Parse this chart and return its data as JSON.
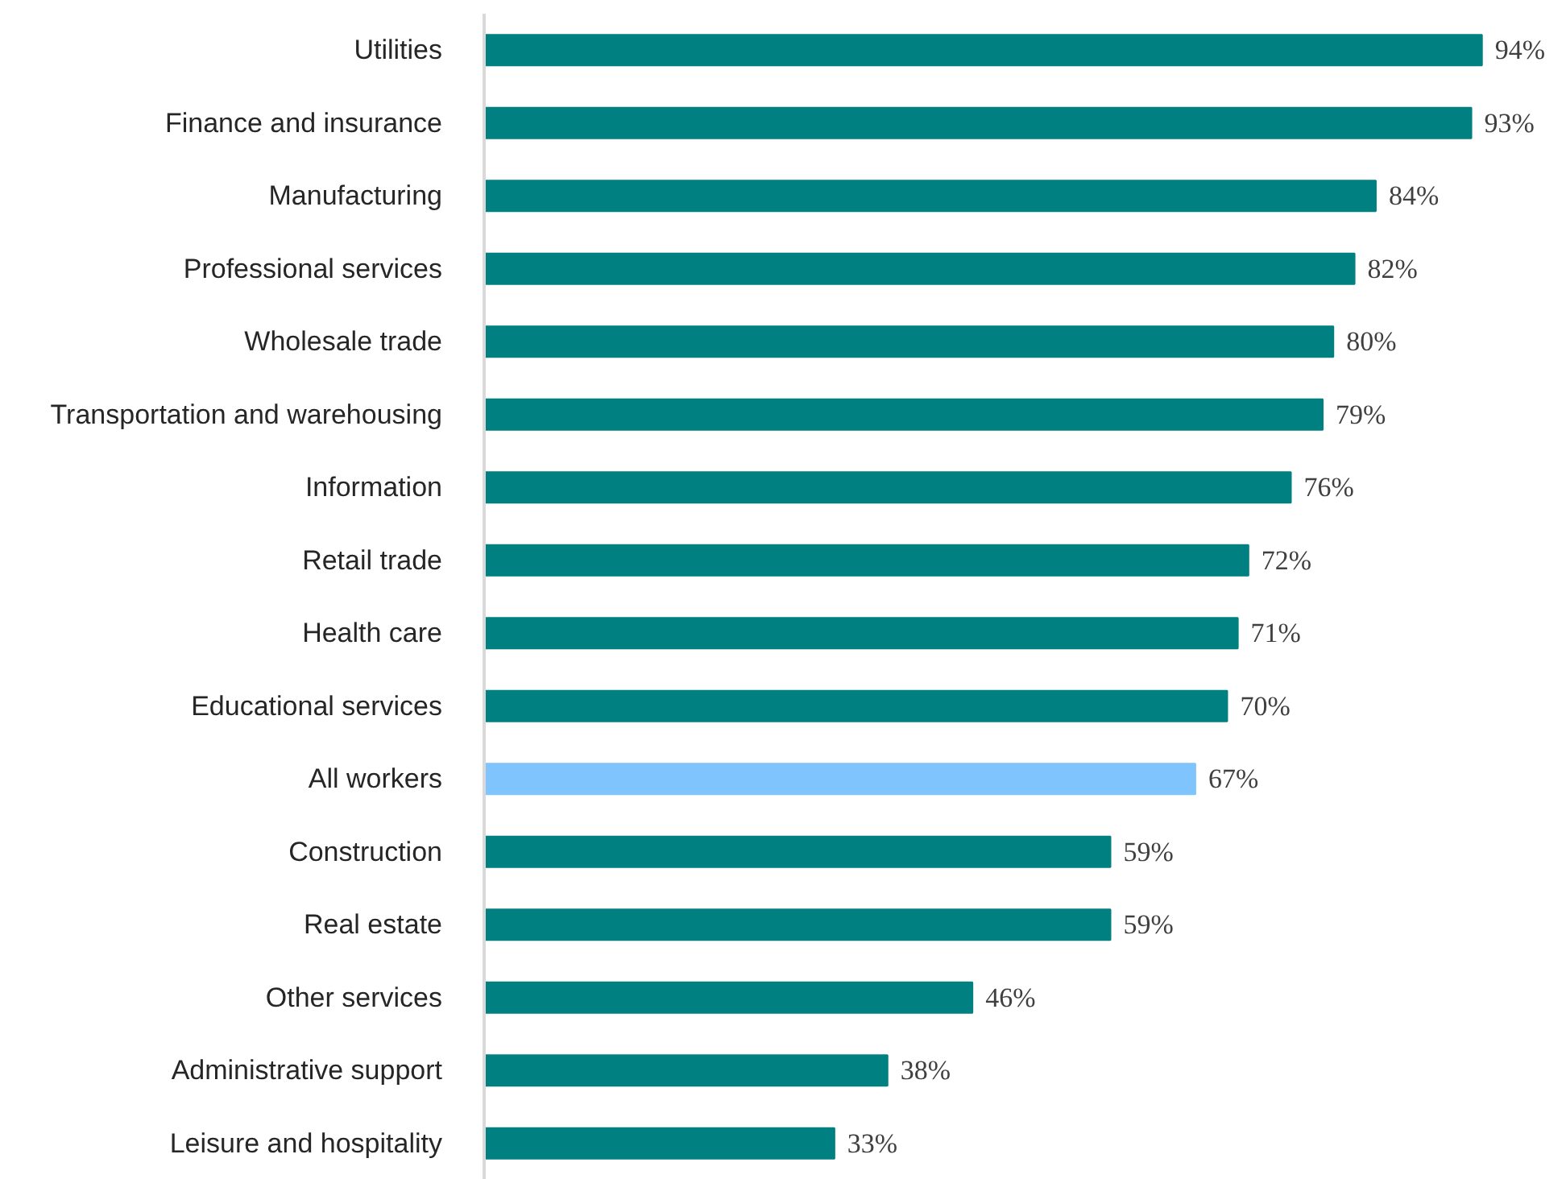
{
  "chart_data": {
    "type": "bar",
    "orientation": "horizontal",
    "categories": [
      "Utilities",
      "Finance and insurance",
      "Manufacturing",
      "Professional services",
      "Wholesale trade",
      "Transportation and warehousing",
      "Information",
      "Retail trade",
      "Health care",
      "Educational services",
      "All workers",
      "Construction",
      "Real estate",
      "Other services",
      "Administrative support",
      "Leisure and hospitality"
    ],
    "values": [
      94,
      93,
      84,
      82,
      80,
      79,
      76,
      72,
      71,
      70,
      67,
      59,
      59,
      46,
      38,
      33
    ],
    "value_labels": [
      "94%",
      "93%",
      "84%",
      "82%",
      "80%",
      "79%",
      "76%",
      "72%",
      "71%",
      "70%",
      "67%",
      "59%",
      "59%",
      "46%",
      "38%",
      "33%"
    ],
    "colors": [
      "#008080",
      "#008080",
      "#008080",
      "#008080",
      "#008080",
      "#008080",
      "#008080",
      "#008080",
      "#008080",
      "#008080",
      "#7fc4fd",
      "#008080",
      "#008080",
      "#008080",
      "#008080",
      "#008080"
    ],
    "data_labels": false
  }
}
